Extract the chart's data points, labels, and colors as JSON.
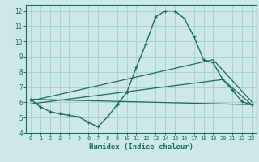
{
  "xlabel": "Humidex (Indice chaleur)",
  "background_color": "#cde8e8",
  "grid_color": "#aed0ce",
  "line_color": "#1a6b60",
  "xlim": [
    -0.5,
    23.5
  ],
  "ylim": [
    4,
    12.4
  ],
  "xticks": [
    0,
    1,
    2,
    3,
    4,
    5,
    6,
    7,
    8,
    9,
    10,
    11,
    12,
    13,
    14,
    15,
    16,
    17,
    18,
    19,
    20,
    21,
    22,
    23
  ],
  "yticks": [
    4,
    5,
    6,
    7,
    8,
    9,
    10,
    11,
    12
  ],
  "series_main": {
    "x": [
      0,
      1,
      2,
      3,
      4,
      5,
      6,
      7,
      8,
      9,
      10,
      11,
      12,
      13,
      14,
      15,
      16,
      17,
      18,
      19,
      20,
      21,
      22,
      23
    ],
    "y": [
      6.2,
      5.7,
      5.4,
      5.25,
      5.15,
      5.05,
      4.7,
      4.4,
      5.05,
      5.85,
      6.65,
      8.3,
      9.85,
      11.6,
      12.0,
      12.0,
      11.5,
      10.3,
      8.8,
      8.6,
      7.5,
      6.8,
      6.05,
      5.85
    ]
  },
  "series_extra": [
    {
      "x": [
        0,
        23
      ],
      "y": [
        6.2,
        5.85
      ]
    },
    {
      "x": [
        0,
        19,
        23
      ],
      "y": [
        6.1,
        8.8,
        6.05
      ]
    },
    {
      "x": [
        0,
        20,
        23
      ],
      "y": [
        5.9,
        7.5,
        5.85
      ]
    }
  ]
}
